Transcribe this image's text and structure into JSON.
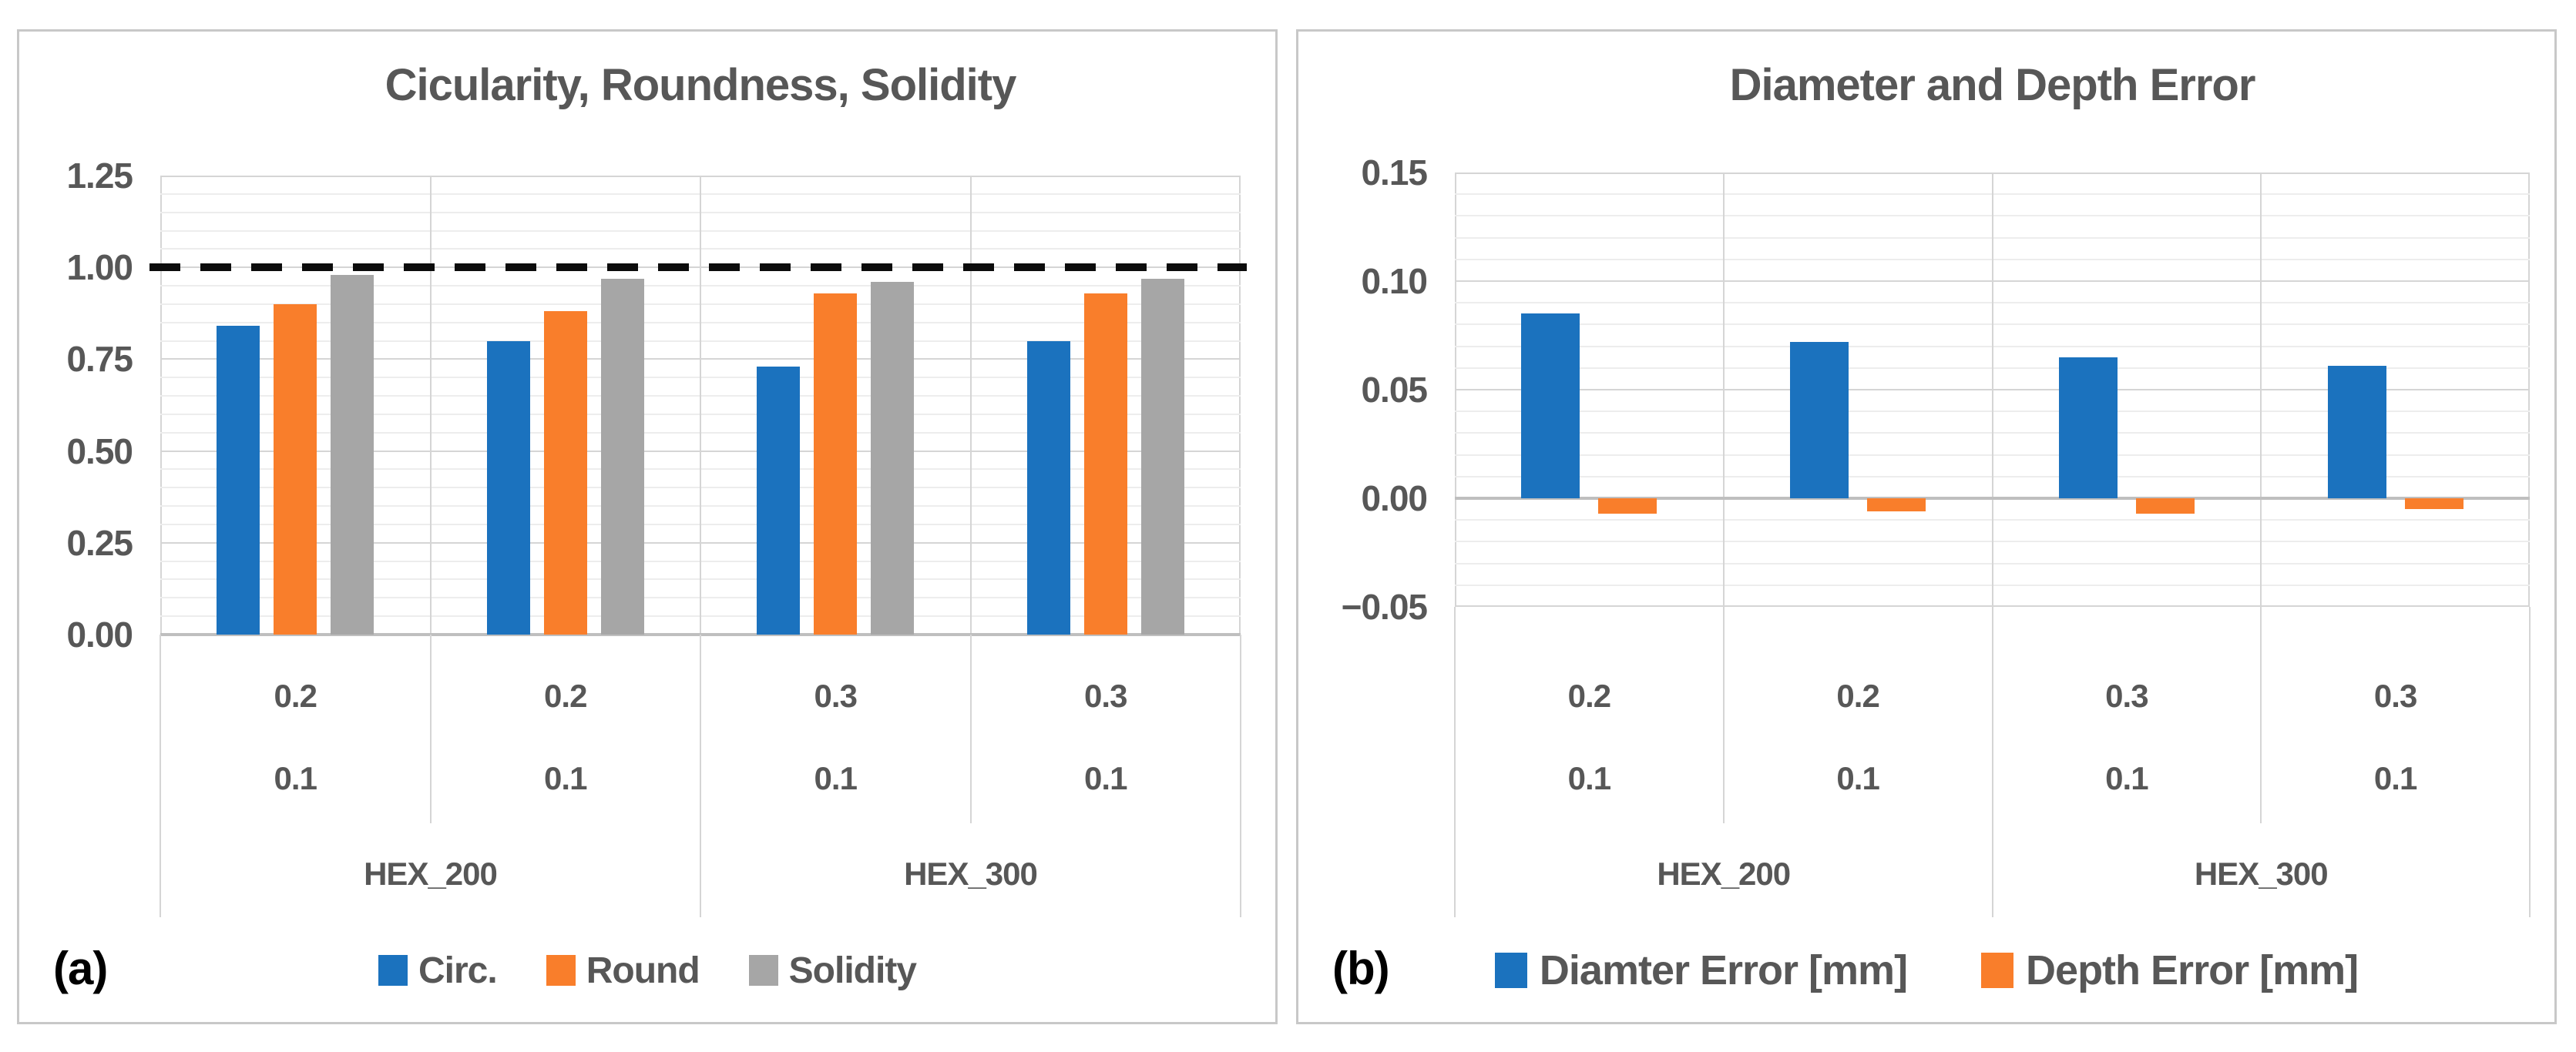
{
  "page": {
    "background": "#ffffff",
    "panel_border": "#c8c8c8"
  },
  "colors": {
    "series_blue": "#1b72be",
    "series_orange": "#f97e2b",
    "series_gray": "#a6a6a6",
    "title_text": "#575757",
    "axis_text": "#575757",
    "major_grid": "#d5d5d5",
    "minor_grid": "#ededed",
    "axis_line": "#bfbfbf",
    "ref_line": "#0c0c0c"
  },
  "chart_data": [
    {
      "type": "bar",
      "panel_label": "(a)",
      "title": "Cicularity, Roundness, Solidity",
      "ylim": [
        0,
        1.25
      ],
      "ytick_step": 0.25,
      "minor_step": 0.05,
      "grid": "on",
      "legend_position": "bottom",
      "yticks": [
        {
          "label": "1.25",
          "v": 1.25
        },
        {
          "label": "1.00",
          "v": 1.0
        },
        {
          "label": "0.75",
          "v": 0.75
        },
        {
          "label": "0.50",
          "v": 0.5
        },
        {
          "label": "0.25",
          "v": 0.25
        },
        {
          "label": "0.00",
          "v": 0.0
        }
      ],
      "ref_line": {
        "v": 1.0,
        "style": "dashed",
        "color": "#0c0c0c"
      },
      "categories": {
        "level1": [
          "0.2",
          "0.2",
          "0.3",
          "0.3"
        ],
        "level2": [
          "0.1",
          "0.1",
          "0.1",
          "0.1"
        ],
        "level3": [
          "HEX_200",
          "HEX_300"
        ]
      },
      "series": [
        {
          "name": "Circ.",
          "color": "#1b72be",
          "values": [
            0.84,
            0.8,
            0.73,
            0.8
          ]
        },
        {
          "name": "Round",
          "color": "#f97e2b",
          "values": [
            0.9,
            0.88,
            0.93,
            0.93
          ]
        },
        {
          "name": "Solidity",
          "color": "#a6a6a6",
          "values": [
            0.98,
            0.97,
            0.96,
            0.97
          ]
        }
      ]
    },
    {
      "type": "bar",
      "panel_label": "(b)",
      "title": "Diameter and Depth Error",
      "ylim": [
        -0.05,
        0.15
      ],
      "ytick_step": 0.05,
      "minor_step": 0.01,
      "grid": "on",
      "legend_position": "bottom",
      "yticks": [
        {
          "label": "0.15",
          "v": 0.15
        },
        {
          "label": "0.10",
          "v": 0.1
        },
        {
          "label": "0.05",
          "v": 0.05
        },
        {
          "label": "0.00",
          "v": 0.0
        },
        {
          "label": "−0.05",
          "v": -0.05
        }
      ],
      "categories": {
        "level1": [
          "0.2",
          "0.2",
          "0.3",
          "0.3"
        ],
        "level2": [
          "0.1",
          "0.1",
          "0.1",
          "0.1"
        ],
        "level3": [
          "HEX_200",
          "HEX_300"
        ]
      },
      "series": [
        {
          "name": "Diamter Error [mm]",
          "color": "#1b72be",
          "values": [
            0.085,
            0.072,
            0.065,
            0.061
          ]
        },
        {
          "name": "Depth Error [mm]",
          "color": "#f97e2b",
          "values": [
            -0.007,
            -0.006,
            -0.007,
            -0.005
          ]
        }
      ]
    }
  ]
}
